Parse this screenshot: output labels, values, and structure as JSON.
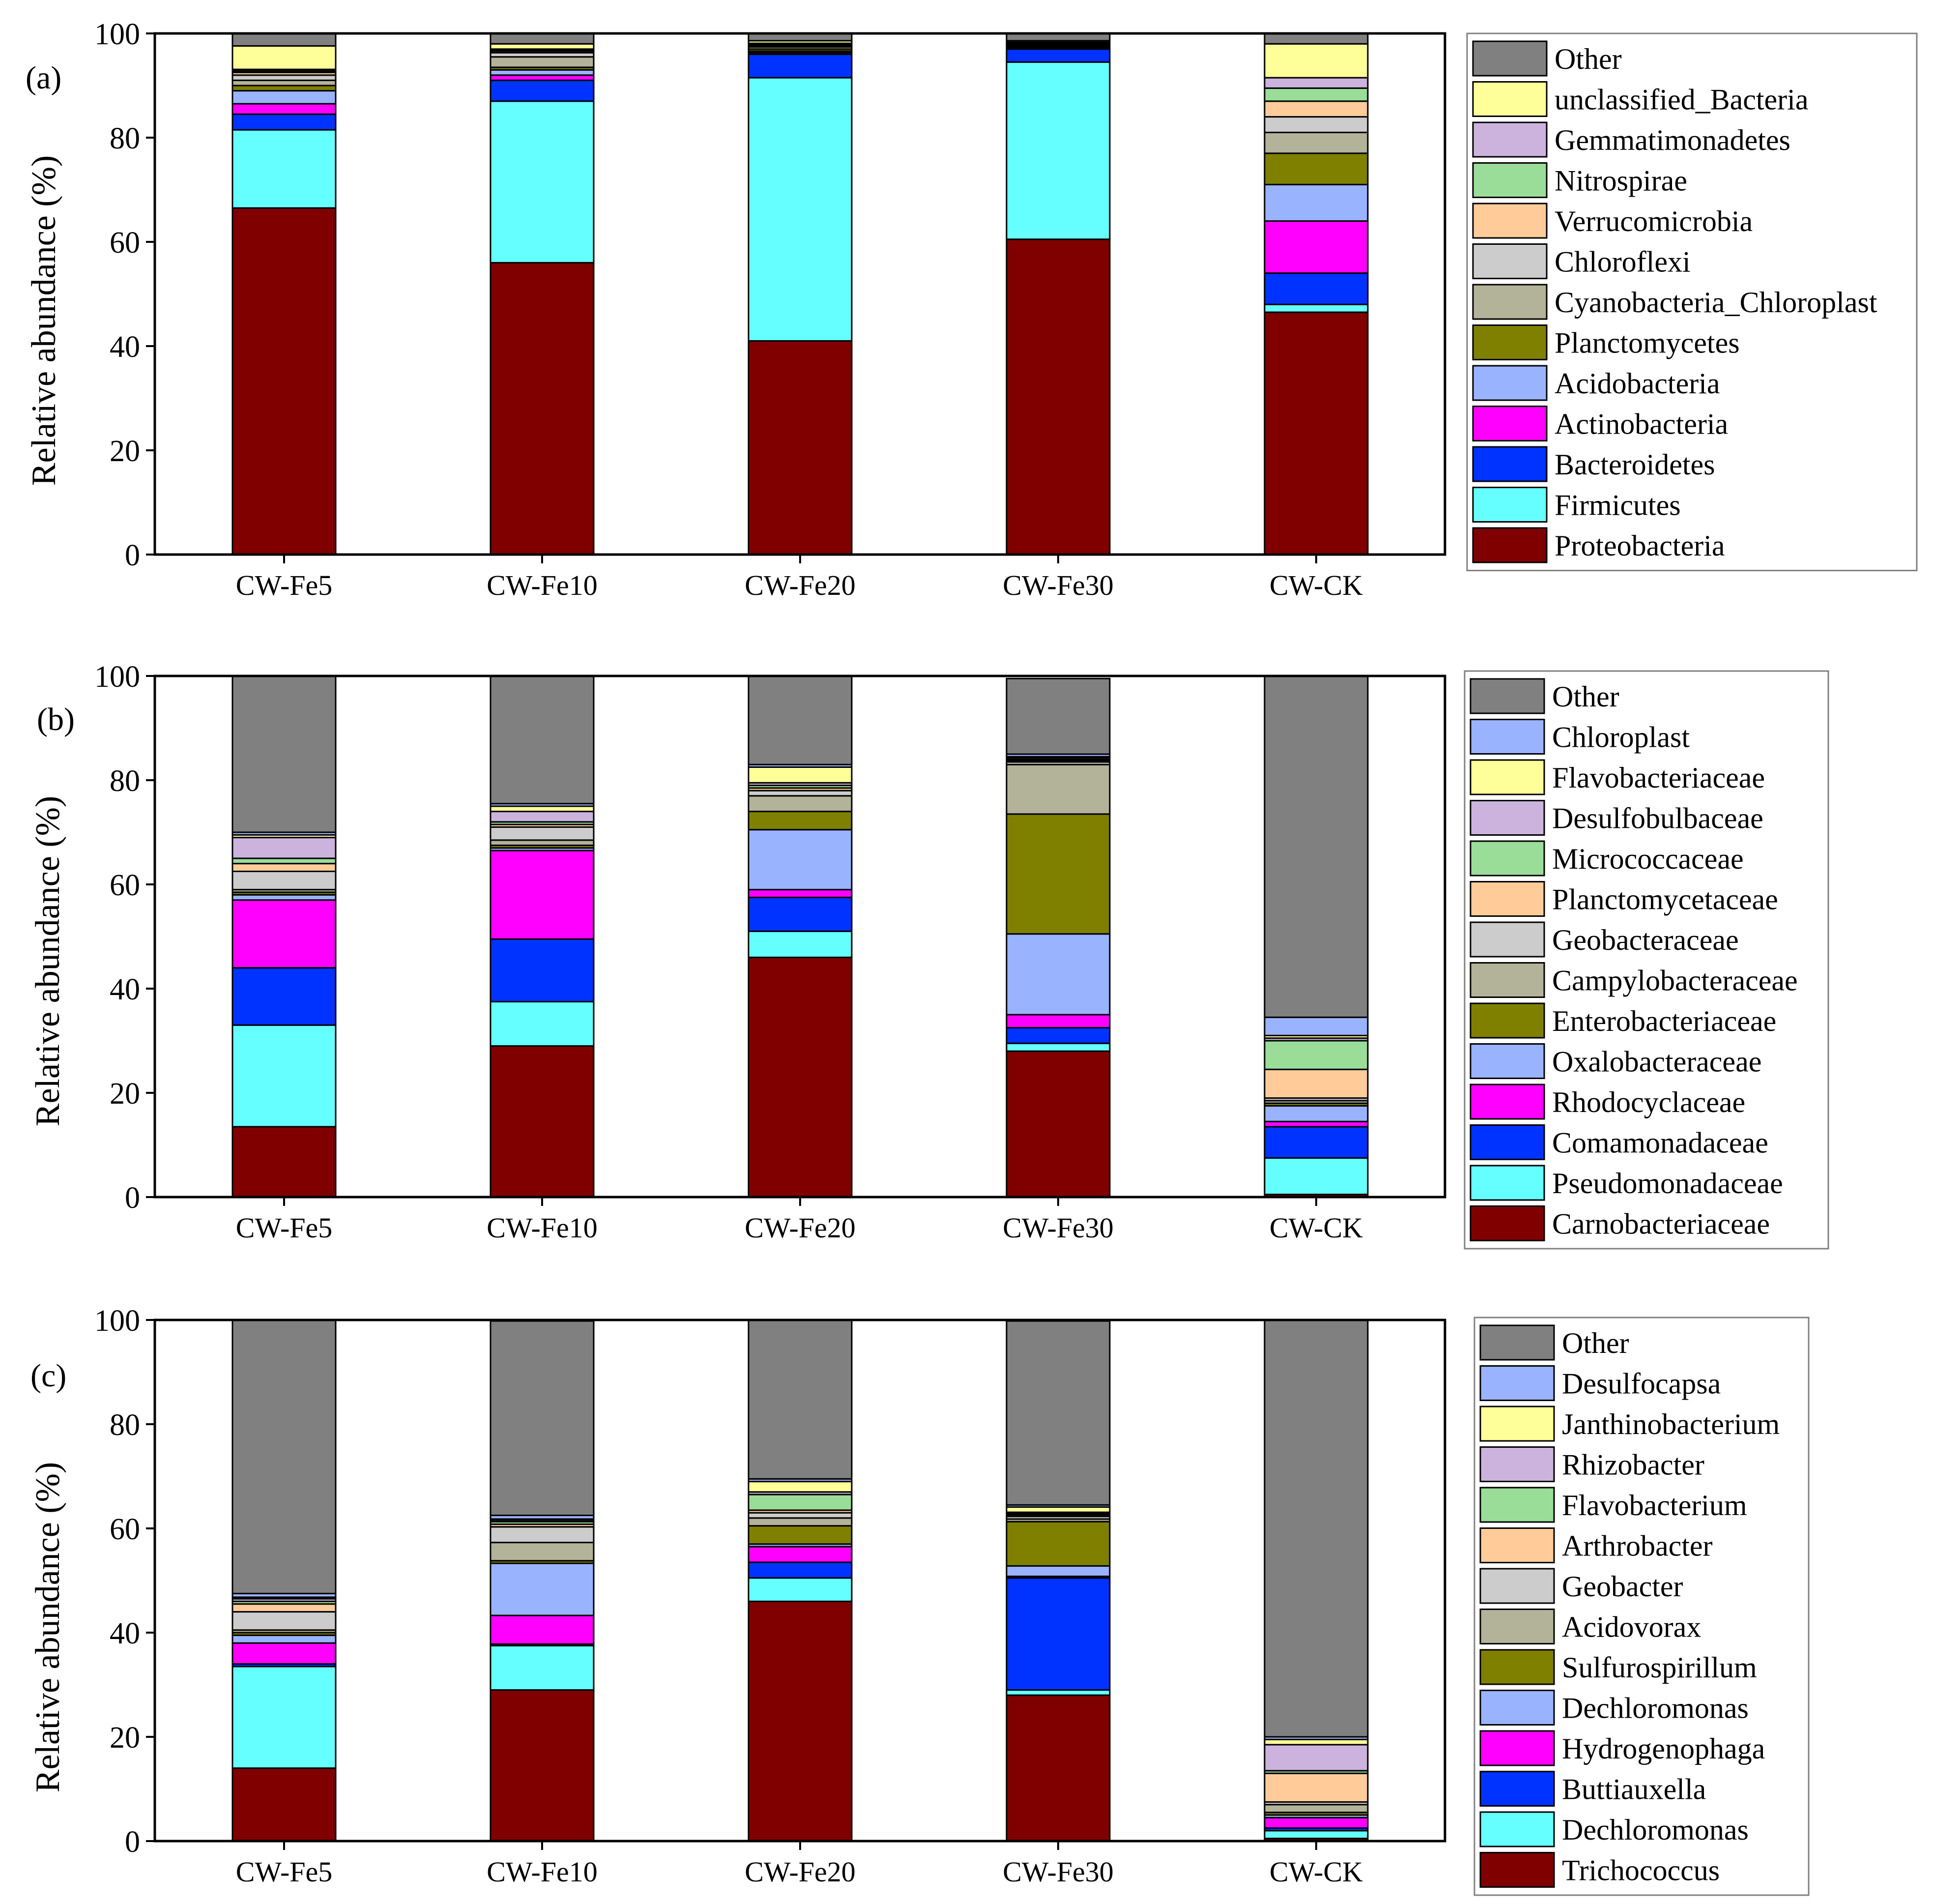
{
  "chart_data": [
    {
      "type": "bar",
      "stacked": true,
      "panel_label": "(a)",
      "ylabel": "Relative abundance (%)",
      "ylim": [
        0,
        100
      ],
      "yticks": [
        "0",
        "20",
        "40",
        "60",
        "80",
        "100"
      ],
      "categories": [
        "CW-Fe5",
        "CW-Fe10",
        "CW-Fe20",
        "CW-Fe30",
        "CW-CK"
      ],
      "series": [
        {
          "name": "Proteobacteria",
          "color": "#800000",
          "values": [
            66.5,
            56,
            41,
            60.5,
            46.5
          ]
        },
        {
          "name": "Firmicutes",
          "color": "#66ffff",
          "values": [
            15,
            31,
            50.5,
            34,
            1.5
          ]
        },
        {
          "name": "Bacteroidetes",
          "color": "#0033ff",
          "values": [
            3,
            4,
            4.5,
            2.5,
            6
          ]
        },
        {
          "name": "Actinobacteria",
          "color": "#ff00ff",
          "values": [
            2,
            1,
            0.3,
            0.2,
            10
          ]
        },
        {
          "name": "Acidobacteria",
          "color": "#99b3ff",
          "values": [
            2.5,
            1,
            0.3,
            0.2,
            7
          ]
        },
        {
          "name": "Planctomycetes",
          "color": "#808000",
          "values": [
            1,
            0.5,
            0.4,
            0.2,
            6
          ]
        },
        {
          "name": "Cyanobacteria_Chloroplast",
          "color": "#b3b399",
          "values": [
            1,
            2,
            0.4,
            0.2,
            4
          ]
        },
        {
          "name": "Chloroflexi",
          "color": "#cccccc",
          "values": [
            1,
            0.8,
            0.3,
            0.2,
            3
          ]
        },
        {
          "name": "Verrucomicrobia",
          "color": "#ffcc99",
          "values": [
            0.5,
            0.3,
            0.2,
            0.1,
            3
          ]
        },
        {
          "name": "Nitrospirae",
          "color": "#99dd99",
          "values": [
            0.3,
            0.2,
            0.1,
            0.1,
            2.5
          ]
        },
        {
          "name": "Gemmatimonadetes",
          "color": "#ccb3dd",
          "values": [
            0.3,
            0.2,
            0.1,
            0.1,
            2
          ]
        },
        {
          "name": "unclassified_Bacteria",
          "color": "#ffff99",
          "values": [
            4.5,
            1,
            0.5,
            0.3,
            6.5
          ]
        },
        {
          "name": "Other",
          "color": "#808080",
          "values": [
            2.4,
            2,
            1.5,
            1.9,
            2
          ]
        }
      ]
    },
    {
      "type": "bar",
      "stacked": true,
      "panel_label": "(b)",
      "ylabel": "Relative abundance (%)",
      "ylim": [
        0,
        100
      ],
      "yticks": [
        "0",
        "20",
        "40",
        "60",
        "80",
        "100"
      ],
      "categories": [
        "CW-Fe5",
        "CW-Fe10",
        "CW-Fe20",
        "CW-Fe30",
        "CW-CK"
      ],
      "series": [
        {
          "name": "Carnobacteriaceae",
          "color": "#800000",
          "values": [
            13.5,
            29,
            46,
            28,
            0.5
          ]
        },
        {
          "name": "Pseudomonadaceae",
          "color": "#66ffff",
          "values": [
            19.5,
            8.5,
            5,
            1.5,
            7
          ]
        },
        {
          "name": "Comamonadaceae",
          "color": "#0033ff",
          "values": [
            11,
            12,
            6.5,
            3,
            6
          ]
        },
        {
          "name": "Rhodocyclaceae",
          "color": "#ff00ff",
          "values": [
            13,
            17,
            1.5,
            2.5,
            1
          ]
        },
        {
          "name": "Oxalobacteraceae",
          "color": "#99b3ff",
          "values": [
            1,
            0.5,
            11.5,
            15.5,
            3
          ]
        },
        {
          "name": "Enterobacteriaceae",
          "color": "#808000",
          "values": [
            0.5,
            0.5,
            3.5,
            23,
            0.5
          ]
        },
        {
          "name": "Campylobacteraceae",
          "color": "#b3b399",
          "values": [
            0.5,
            1,
            3,
            9.5,
            0.5
          ]
        },
        {
          "name": "Geobacteraceae",
          "color": "#cccccc",
          "values": [
            3.5,
            2.5,
            1,
            0.5,
            0.5
          ]
        },
        {
          "name": "Planctomycetaceae",
          "color": "#ffcc99",
          "values": [
            1.5,
            0.5,
            0.5,
            0.3,
            5.5
          ]
        },
        {
          "name": "Micrococcaceae",
          "color": "#99dd99",
          "values": [
            1,
            0.5,
            0.5,
            0.2,
            5.5
          ]
        },
        {
          "name": "Desulfobulbaceae",
          "color": "#ccb3dd",
          "values": [
            4,
            2,
            0.5,
            0.3,
            0.5
          ]
        },
        {
          "name": "Flavobacteriaceae",
          "color": "#ffff99",
          "values": [
            0.5,
            1,
            3,
            0.2,
            0.5
          ]
        },
        {
          "name": "Chloroplast",
          "color": "#99b3ff",
          "values": [
            0.5,
            0.5,
            0.5,
            0.5,
            3.5
          ]
        },
        {
          "name": "Other",
          "color": "#808080",
          "values": [
            30,
            24.5,
            17.5,
            14.5,
            65.5
          ]
        }
      ]
    },
    {
      "type": "bar",
      "stacked": true,
      "panel_label": "(c)",
      "ylabel": "Relative abundance (%)",
      "ylim": [
        0,
        100
      ],
      "yticks": [
        "0",
        "20",
        "40",
        "60",
        "80",
        "100"
      ],
      "categories": [
        "CW-Fe5",
        "CW-Fe10",
        "CW-Fe20",
        "CW-Fe30",
        "CW-CK"
      ],
      "series": [
        {
          "name": "Trichococcus",
          "color": "#800000",
          "values": [
            14,
            29,
            46,
            28,
            0.5
          ]
        },
        {
          "name": "Dechloromonas",
          "color": "#66ffff",
          "values": [
            19.5,
            8.5,
            4.5,
            1,
            1.5
          ]
        },
        {
          "name": "Buttiauxella",
          "color": "#0033ff",
          "values": [
            0.5,
            0.3,
            3,
            21.5,
            0.5
          ]
        },
        {
          "name": "Hydrogenophaga",
          "color": "#ff00ff",
          "values": [
            4,
            5.5,
            3,
            0.3,
            2
          ]
        },
        {
          "name": "Dechloromonas",
          "color": "#99b3ff",
          "values": [
            1.5,
            10,
            0.5,
            2,
            0.5
          ]
        },
        {
          "name": "Sulfurospirillum",
          "color": "#808000",
          "values": [
            0.5,
            0.5,
            3.5,
            8.5,
            0.5
          ]
        },
        {
          "name": "Acidovorax",
          "color": "#b3b399",
          "values": [
            0.5,
            3.5,
            1.5,
            0.5,
            1.5
          ]
        },
        {
          "name": "Geobacter",
          "color": "#cccccc",
          "values": [
            3.5,
            3,
            1,
            0.5,
            0.5
          ]
        },
        {
          "name": "Arthrobacter",
          "color": "#ffcc99",
          "values": [
            1.5,
            0.5,
            0.5,
            0.3,
            5.5
          ]
        },
        {
          "name": "Flavobacterium",
          "color": "#99dd99",
          "values": [
            0.5,
            0.5,
            3,
            0.2,
            0.5
          ]
        },
        {
          "name": "Rhizobacter",
          "color": "#ccb3dd",
          "values": [
            0.5,
            0.3,
            0.5,
            0.3,
            5
          ]
        },
        {
          "name": "Janthinobacterium",
          "color": "#ffff99",
          "values": [
            0.3,
            0.2,
            2,
            1,
            1
          ]
        },
        {
          "name": "Desulfocapsa",
          "color": "#99b3ff",
          "values": [
            0.7,
            0.7,
            0.5,
            0.4,
            0.5
          ]
        },
        {
          "name": "Other",
          "color": "#808080",
          "values": [
            53,
            37.3,
            31,
            35.3,
            80
          ]
        }
      ]
    }
  ]
}
